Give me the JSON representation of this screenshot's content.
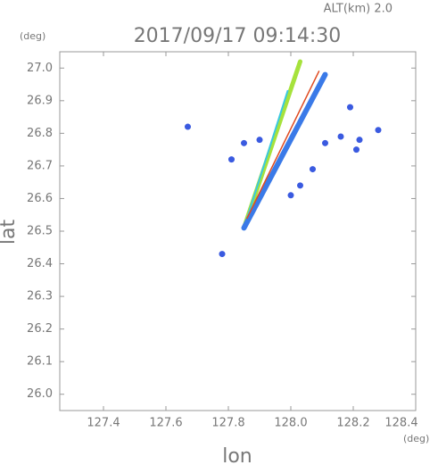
{
  "chart_data": {
    "type": "scatter",
    "title": "2017/09/17 09:14:30",
    "annotation": "ALT(km)  2.0",
    "y_unit": "(deg)",
    "x_unit": "(deg)",
    "x_label": "lon",
    "y_label": "lat",
    "xlim": [
      127.26,
      128.4
    ],
    "ylim": [
      25.95,
      27.05
    ],
    "xticks": [
      127.4,
      127.6,
      127.8,
      {
        "value": 128.0,
        "label": "128.0"
      },
      128.2,
      128.4
    ],
    "yticks": [
      {
        "value": 26.0,
        "label": "26.0"
      },
      26.1,
      26.2,
      26.3,
      26.4,
      26.5,
      26.6,
      26.7,
      26.8,
      26.9,
      {
        "value": 27.0,
        "label": "27.0"
      }
    ],
    "lines": [
      {
        "color": "#a6e23c",
        "x": [
          127.85,
          128.03
        ],
        "y": [
          26.51,
          27.02
        ]
      },
      {
        "color": "#3ac8e0",
        "x": [
          127.86,
          127.99
        ],
        "y": [
          26.54,
          26.93
        ]
      },
      {
        "color": "#3a7ae8",
        "x": [
          127.85,
          128.11
        ],
        "y": [
          26.51,
          26.98
        ]
      },
      {
        "color": "#e04a20",
        "x": [
          127.86,
          128.09
        ],
        "y": [
          26.54,
          26.99
        ]
      }
    ],
    "series": [
      {
        "color": "#3a5ae0",
        "x": [
          128.19,
          128.28,
          128.11,
          128.16,
          128.22,
          128.21,
          127.9,
          127.85,
          127.81,
          127.78,
          127.67,
          128.07,
          128.03,
          128.0
        ],
        "y": [
          26.88,
          26.81,
          26.77,
          26.79,
          26.78,
          26.75,
          26.78,
          26.77,
          26.72,
          26.43,
          26.82,
          26.69,
          26.64,
          26.61
        ]
      }
    ]
  }
}
